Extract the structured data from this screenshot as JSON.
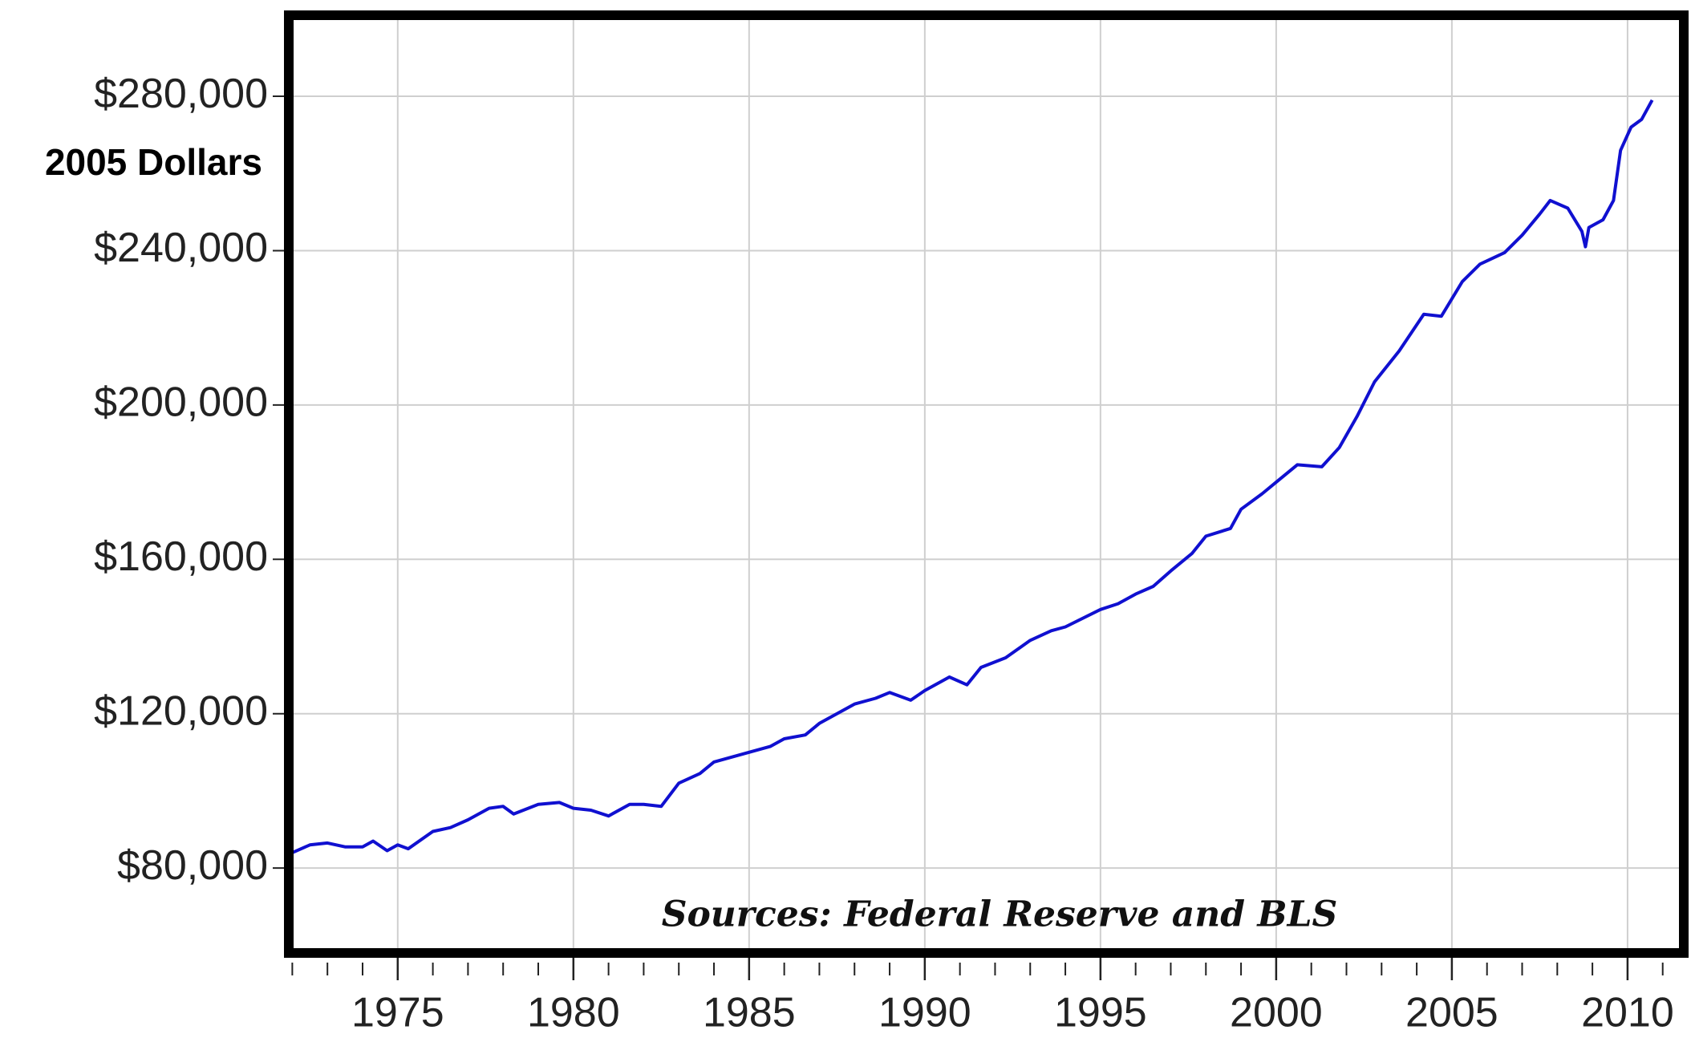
{
  "chart_data": {
    "type": "line",
    "y_axis_label": "2005 Dollars",
    "annotation": "Sources: Federal Reserve and BLS",
    "series": [
      {
        "color": "#1010d0",
        "x": [
          1972.0,
          1972.5,
          1973.0,
          1973.5,
          1974.0,
          1974.3,
          1974.7,
          1975.0,
          1975.3,
          1976.0,
          1976.5,
          1977.0,
          1977.6,
          1978.0,
          1978.3,
          1979.0,
          1979.6,
          1980.0,
          1980.5,
          1981.0,
          1981.6,
          1982.0,
          1982.5,
          1983.0,
          1983.6,
          1984.0,
          1985.0,
          1985.6,
          1986.0,
          1986.6,
          1987.0,
          1988.0,
          1988.6,
          1989.0,
          1989.6,
          1990.0,
          1990.7,
          1991.2,
          1991.6,
          1992.3,
          1993.0,
          1993.6,
          1994.0,
          1995.0,
          1995.5,
          1996.0,
          1996.5,
          1997.0,
          1997.6,
          1998.0,
          1998.7,
          1999.0,
          1999.6,
          2000.0,
          2000.6,
          2001.3,
          2001.8,
          2002.3,
          2002.8,
          2003.5,
          2004.2,
          2004.7,
          2005.3,
          2005.8,
          2006.5,
          2007.0,
          2007.5,
          2007.8,
          2008.3,
          2008.7,
          2008.8,
          2008.9,
          2009.3,
          2009.6,
          2009.8,
          2010.1,
          2010.4,
          2010.7
        ],
        "values": [
          84000,
          86000,
          86500,
          85500,
          85500,
          87000,
          84500,
          86000,
          85000,
          89500,
          90500,
          92500,
          95500,
          96000,
          94000,
          96500,
          97000,
          95500,
          95000,
          93500,
          96500,
          96500,
          96000,
          102000,
          104500,
          107500,
          110000,
          111500,
          113500,
          114500,
          117500,
          122500,
          124000,
          125500,
          123500,
          126000,
          129500,
          127500,
          132000,
          134500,
          139000,
          141500,
          142500,
          147000,
          148500,
          151000,
          153000,
          157000,
          161500,
          166000,
          168000,
          173000,
          177000,
          180000,
          184500,
          184000,
          189000,
          197000,
          206000,
          214000,
          223500,
          223000,
          232000,
          236500,
          239500,
          244000,
          249500,
          253000,
          251000,
          245000,
          241000,
          246000,
          248000,
          253000,
          266000,
          272000,
          274000,
          279000
        ]
      }
    ],
    "xlim": [
      1971.9,
      2011.6
    ],
    "xticks": [
      1975,
      1980,
      1985,
      1990,
      1995,
      2000,
      2005,
      2010
    ],
    "xminorticks": [
      1972,
      1973,
      1974,
      1976,
      1977,
      1978,
      1979,
      1981,
      1982,
      1983,
      1984,
      1986,
      1987,
      1988,
      1989,
      1991,
      1992,
      1993,
      1994,
      1996,
      1997,
      1998,
      1999,
      2001,
      2002,
      2003,
      2004,
      2006,
      2007,
      2008,
      2009,
      2011
    ],
    "ylim": [
      58000,
      301000
    ],
    "yticks": [
      {
        "value": 80000,
        "label": "$80,000"
      },
      {
        "value": 120000,
        "label": "$120,000"
      },
      {
        "value": 160000,
        "label": "$160,000"
      },
      {
        "value": 200000,
        "label": "$200,000"
      },
      {
        "value": 240000,
        "label": "$240,000"
      },
      {
        "value": 280000,
        "label": "$280,000"
      }
    ],
    "grid": true
  }
}
